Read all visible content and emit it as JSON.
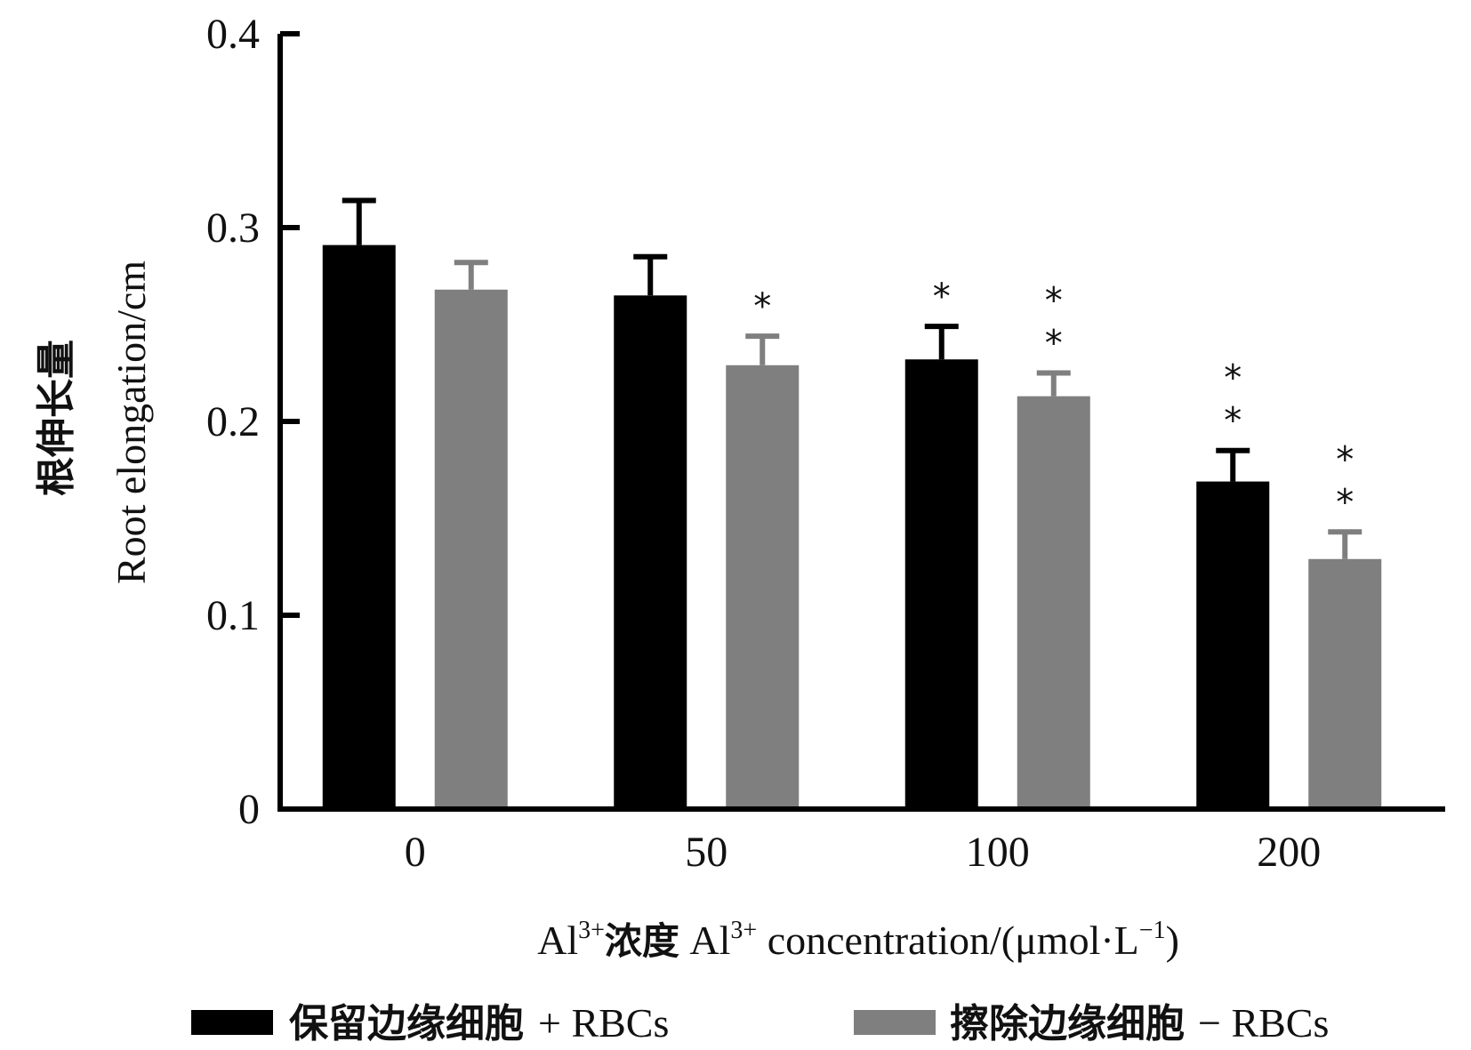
{
  "chart_data": {
    "type": "bar",
    "title": "",
    "categories": [
      "0",
      "50",
      "100",
      "200"
    ],
    "series": [
      {
        "name_cn": "保留边缘细胞",
        "name_en": "+ RBCs",
        "color": "#000000",
        "values": [
          0.291,
          0.265,
          0.232,
          0.169
        ],
        "errors": [
          0.023,
          0.02,
          0.017,
          0.016
        ],
        "significance": [
          "",
          "",
          "*",
          "**"
        ]
      },
      {
        "name_cn": "擦除边缘细胞",
        "name_en": "− RBCs",
        "color": "#7f7f7f",
        "values": [
          0.268,
          0.229,
          0.213,
          0.129
        ],
        "errors": [
          0.014,
          0.015,
          0.012,
          0.014
        ],
        "significance": [
          "",
          "*",
          "**",
          "**"
        ]
      }
    ],
    "ylim": [
      0,
      0.4
    ],
    "yticks": [
      "0",
      "0.1",
      "0.2",
      "0.3",
      "0.4"
    ],
    "ylabel_cn": "根伸长量",
    "ylabel_en": "Root elongation/cm",
    "xlabel": {
      "prefix": "Al",
      "sup1": "3+",
      "cn": "浓度",
      "mid": " Al",
      "sup2": "3+",
      "rest": " concentration/(μmol·L",
      "sup3": "−1",
      "end": ")"
    },
    "legend_position": "bottom"
  }
}
